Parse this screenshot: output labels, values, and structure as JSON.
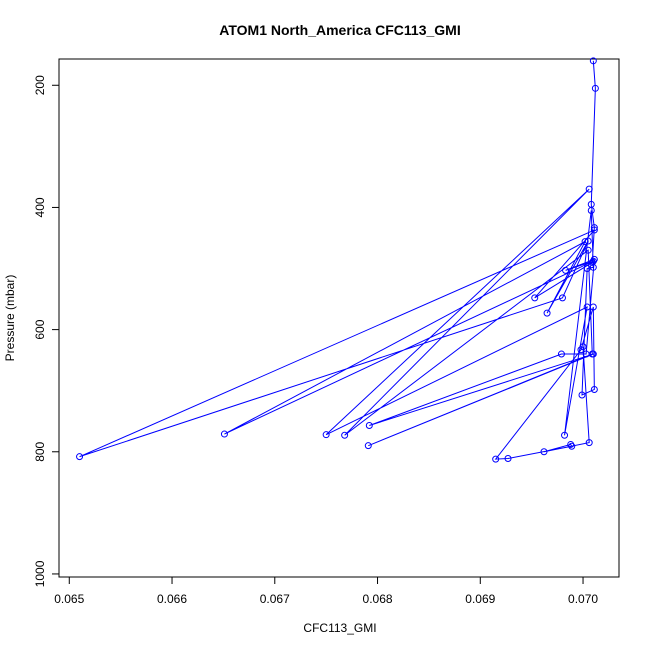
{
  "chart_data": {
    "type": "line",
    "title": "ATOM1 North_America CFC113_GMI",
    "xlabel": "CFC113_GMI",
    "ylabel": "Pressure (mbar)",
    "xlim": [
      0.0649,
      0.07035
    ],
    "ylim": [
      1005,
      157
    ],
    "y_reversed": true,
    "grid": false,
    "legend": "none",
    "x_ticks": [
      {
        "value": 0.065,
        "label": "0.065"
      },
      {
        "value": 0.066,
        "label": "0.066"
      },
      {
        "value": 0.067,
        "label": "0.067"
      },
      {
        "value": 0.068,
        "label": "0.068"
      },
      {
        "value": 0.069,
        "label": "0.069"
      },
      {
        "value": 0.07,
        "label": "0.070"
      }
    ],
    "y_ticks": [
      {
        "value": 200,
        "label": "200"
      },
      {
        "value": 400,
        "label": "400"
      },
      {
        "value": 600,
        "label": "600"
      },
      {
        "value": 800,
        "label": "800"
      },
      {
        "value": 1000,
        "label": "1000"
      }
    ],
    "series": [
      {
        "color": "#0000ff",
        "x": [
          0.0701,
          0.07012,
          0.07008,
          0.07011,
          0.07009,
          0.06953,
          0.07011,
          0.0651,
          0.0698,
          0.07005,
          0.06965,
          0.07002,
          0.06651,
          0.0701,
          0.06983,
          0.07011,
          0.07003,
          0.06979,
          0.06792,
          0.0701,
          0.06791,
          0.07009,
          0.07005,
          0.06768,
          0.07006,
          0.0675,
          0.07004,
          0.06982,
          0.07008,
          0.0701,
          0.07004,
          0.06999,
          0.07011,
          0.0701,
          0.06998,
          0.06915,
          0.06927,
          0.06989,
          0.06988,
          0.06962,
          0.07006,
          0.07
        ],
        "y": [
          160,
          205,
          395,
          433,
          490,
          548,
          437,
          808,
          548,
          455,
          573,
          456,
          771,
          488,
          503,
          485,
          640,
          640,
          757,
          640,
          790,
          640,
          470,
          773,
          370,
          772,
          563,
          773,
          405,
          498,
          500,
          707,
          698,
          563,
          633,
          812,
          811,
          791,
          788,
          800,
          785,
          628
        ]
      }
    ]
  }
}
